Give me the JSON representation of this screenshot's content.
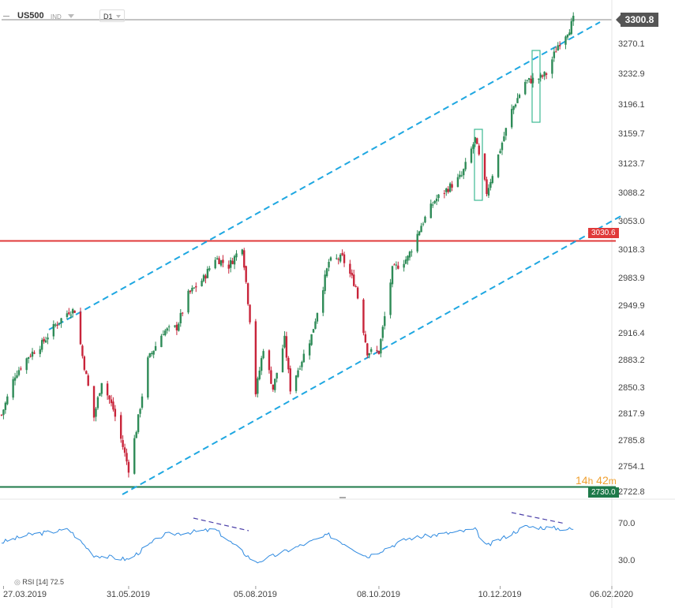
{
  "header": {
    "symbol": "US500",
    "market": "IND",
    "timeframe": "D1"
  },
  "badges": {
    "current_price": "3300.8",
    "resistance": "3030.6",
    "support": "2730.0",
    "timer_h": "14",
    "timer_h_unit": "h",
    "timer_m": "42",
    "timer_m_unit": "m"
  },
  "colors": {
    "up": "#2e8b57",
    "down": "#c8243a",
    "channel": "#1ea7e1",
    "resistance": "#e03a3a",
    "support": "#1e7a4a",
    "rsi": "#2f8ae0",
    "divergence": "#4b3fa8",
    "box": "#3cb992"
  },
  "rsi": {
    "label": "RSI",
    "period": "[14]",
    "value": "72.5",
    "ticks": [
      "70.0",
      "30.0"
    ]
  },
  "chart_data": {
    "type": "candlestick",
    "ylim": [
      2722.8,
      3300.8
    ],
    "y_ticks": [
      "3270.1",
      "3232.9",
      "3196.1",
      "3159.7",
      "3123.7",
      "3088.2",
      "3053.0",
      "3018.3",
      "2983.9",
      "2949.9",
      "2916.4",
      "2883.2",
      "2850.3",
      "2817.9",
      "2785.8",
      "2754.1",
      "2722.8"
    ],
    "x_ticks": [
      "27.03.2019",
      "31.05.2019",
      "05.08.2019",
      "08.10.2019",
      "10.12.2019",
      "06.02.2020"
    ],
    "x_range": [
      "2019-03-26",
      "2020-02-06"
    ],
    "resistance_level": 3030.6,
    "support_level": 2730.0,
    "close_series": [
      [
        "2019-03-26",
        2818
      ],
      [
        "2019-04-02",
        2867
      ],
      [
        "2019-04-09",
        2890
      ],
      [
        "2019-04-16",
        2905
      ],
      [
        "2019-04-23",
        2928
      ],
      [
        "2019-04-30",
        2945
      ],
      [
        "2019-05-03",
        2946
      ],
      [
        "2019-05-07",
        2890
      ],
      [
        "2019-05-13",
        2815
      ],
      [
        "2019-05-17",
        2860
      ],
      [
        "2019-05-23",
        2825
      ],
      [
        "2019-05-31",
        2752
      ],
      [
        "2019-06-04",
        2800
      ],
      [
        "2019-06-10",
        2885
      ],
      [
        "2019-06-18",
        2920
      ],
      [
        "2019-06-25",
        2925
      ],
      [
        "2019-07-01",
        2965
      ],
      [
        "2019-07-09",
        2985
      ],
      [
        "2019-07-15",
        3010
      ],
      [
        "2019-07-22",
        3000
      ],
      [
        "2019-07-29",
        3025
      ],
      [
        "2019-08-02",
        2935
      ],
      [
        "2019-08-05",
        2845
      ],
      [
        "2019-08-09",
        2900
      ],
      [
        "2019-08-14",
        2850
      ],
      [
        "2019-08-20",
        2910
      ],
      [
        "2019-08-23",
        2850
      ],
      [
        "2019-09-03",
        2915
      ],
      [
        "2019-09-12",
        3005
      ],
      [
        "2019-09-19",
        3010
      ],
      [
        "2019-09-26",
        2975
      ],
      [
        "2019-10-02",
        2895
      ],
      [
        "2019-10-08",
        2895
      ],
      [
        "2019-10-15",
        2995
      ],
      [
        "2019-10-23",
        3010
      ],
      [
        "2019-10-30",
        3050
      ],
      [
        "2019-11-06",
        3080
      ],
      [
        "2019-11-13",
        3095
      ],
      [
        "2019-11-20",
        3110
      ],
      [
        "2019-11-27",
        3155
      ],
      [
        "2019-12-03",
        3090
      ],
      [
        "2019-12-09",
        3135
      ],
      [
        "2019-12-16",
        3190
      ],
      [
        "2019-12-23",
        3225
      ],
      [
        "2019-12-31",
        3230
      ],
      [
        "2020-01-03",
        3235
      ],
      [
        "2020-01-09",
        3270
      ],
      [
        "2020-01-15",
        3290
      ],
      [
        "2020-01-17",
        3300.8
      ]
    ],
    "rsi_series": [
      [
        "2019-03-26",
        55
      ],
      [
        "2019-04-09",
        65
      ],
      [
        "2019-04-30",
        72
      ],
      [
        "2019-05-13",
        38
      ],
      [
        "2019-05-31",
        32
      ],
      [
        "2019-06-18",
        65
      ],
      [
        "2019-07-15",
        72
      ],
      [
        "2019-08-05",
        28
      ],
      [
        "2019-09-12",
        65
      ],
      [
        "2019-10-02",
        36
      ],
      [
        "2019-10-23",
        60
      ],
      [
        "2019-11-27",
        72
      ],
      [
        "2019-12-03",
        50
      ],
      [
        "2019-12-23",
        76
      ],
      [
        "2020-01-17",
        72.5
      ]
    ]
  }
}
